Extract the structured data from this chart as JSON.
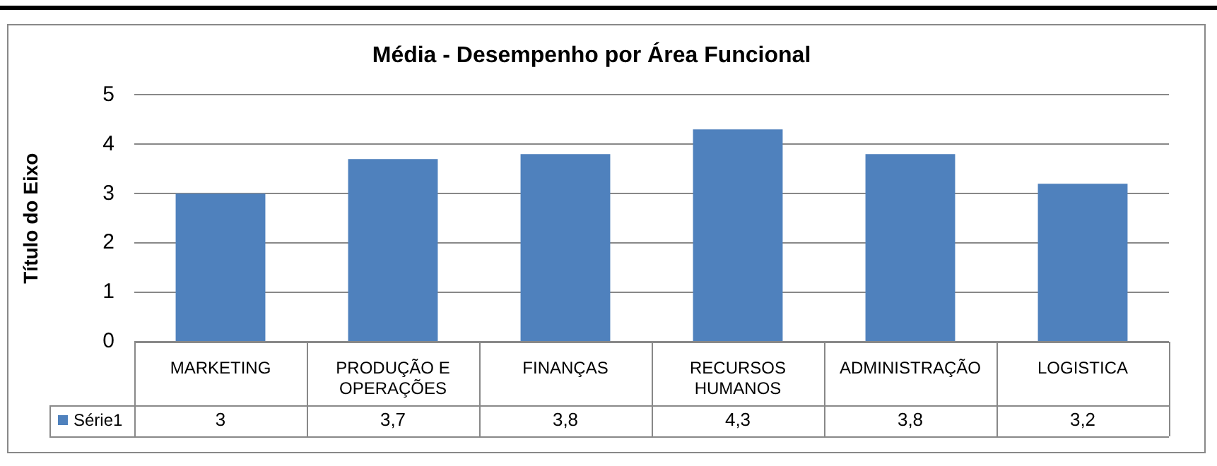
{
  "chart_data": {
    "type": "bar",
    "title": "Média - Desempenho por Área Funcional",
    "ylabel": "Título do Eixo",
    "categories": [
      "MARKETING",
      "PRODUÇÃO E OPERAÇÕES",
      "FINANÇAS",
      "RECURSOS HUMANOS",
      "ADMINISTRAÇÃO",
      "LOGISTICA"
    ],
    "series": [
      {
        "name": "Série1",
        "color": "#4f81bd",
        "values": [
          3,
          3.7,
          3.8,
          4.3,
          3.8,
          3.2
        ],
        "value_labels": [
          "3",
          "3,7",
          "3,8",
          "4,3",
          "3,8",
          "3,2"
        ]
      }
    ],
    "ylim": [
      0,
      5
    ],
    "yticks": [
      0,
      1,
      2,
      3,
      4,
      5
    ],
    "grid": "y",
    "legend": "bottom"
  }
}
